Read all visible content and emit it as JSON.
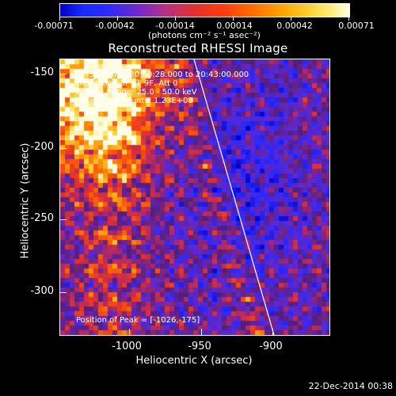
{
  "colorbar": {
    "tick_labels": [
      "-0.00071",
      "-0.00042",
      "-0.00014",
      "0.00014",
      "0.00042",
      "0.00071"
    ],
    "units": "(photons cm⁻² s⁻¹ asec⁻²)"
  },
  "title": "Reconstructed RHESSI Image",
  "info": {
    "time": "20-Sep-2014 20:40:28.000 to 20:43:00.000",
    "detectors": "Detectors: 3F 6F 9F, Att 0",
    "energy": "Energy Range: 25.0 - 50.0 keV",
    "clean": "Clean     Total counts: 1.23E+03",
    "peak": "Position of Peak = [-1026,-175]"
  },
  "axes": {
    "xlabel": "Heliocentric X (arcsec)",
    "ylabel": "Heliocentric Y (arcsec)",
    "xticks": [
      "-1000",
      "-950",
      "-900"
    ],
    "yticks": [
      "-150",
      "-200",
      "-250",
      "-300"
    ]
  },
  "footer": "22-Dec-2014 00:38",
  "chart_data": {
    "type": "heatmap",
    "title": "Reconstructed RHESSI Image",
    "xlabel": "Heliocentric X (arcsec)",
    "ylabel": "Heliocentric Y (arcsec)",
    "xlim": [
      -1046,
      -884
    ],
    "ylim": [
      -333,
      -140
    ],
    "colorbar_range": [
      -0.00071,
      0.00071
    ],
    "limb_line": {
      "x": [
        -955,
        -885
      ],
      "y": [
        -140,
        -333
      ]
    },
    "peak_position": [
      -1026,
      -175
    ]
  }
}
